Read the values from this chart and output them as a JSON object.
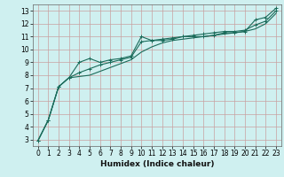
{
  "background_color": "#cff0f0",
  "grid_color_major": "#c8a0a0",
  "grid_color_minor": "#ddd8d8",
  "line_color": "#1a6b5a",
  "xlabel": "Humidex (Indice chaleur)",
  "xlim": [
    -0.5,
    23.5
  ],
  "ylim": [
    2.5,
    13.5
  ],
  "xticks": [
    0,
    1,
    2,
    3,
    4,
    5,
    6,
    7,
    8,
    9,
    10,
    11,
    12,
    13,
    14,
    15,
    16,
    17,
    18,
    19,
    20,
    21,
    22,
    23
  ],
  "yticks": [
    3,
    4,
    5,
    6,
    7,
    8,
    9,
    10,
    11,
    12,
    13
  ],
  "series1_x": [
    0,
    1,
    2,
    3,
    4,
    5,
    6,
    7,
    8,
    9,
    10,
    11,
    12,
    13,
    14,
    15,
    16,
    17,
    18,
    19,
    20,
    21,
    22,
    23
  ],
  "series1_y": [
    2.9,
    4.5,
    7.1,
    7.8,
    9.0,
    9.3,
    9.0,
    9.2,
    9.3,
    9.5,
    11.0,
    10.7,
    10.7,
    10.8,
    11.0,
    11.0,
    11.0,
    11.1,
    11.3,
    11.3,
    11.4,
    12.3,
    12.5,
    13.2
  ],
  "series2_x": [
    0,
    1,
    2,
    3,
    4,
    5,
    6,
    7,
    8,
    9,
    10,
    11,
    12,
    13,
    14,
    15,
    16,
    17,
    18,
    19,
    20,
    21,
    22,
    23
  ],
  "series2_y": [
    2.9,
    4.5,
    7.1,
    7.8,
    8.2,
    8.5,
    8.8,
    9.0,
    9.2,
    9.4,
    10.6,
    10.7,
    10.8,
    10.9,
    11.0,
    11.1,
    11.2,
    11.3,
    11.4,
    11.4,
    11.5,
    11.9,
    12.2,
    13.0
  ],
  "series3_x": [
    0,
    1,
    2,
    3,
    4,
    5,
    6,
    7,
    8,
    9,
    10,
    11,
    12,
    13,
    14,
    15,
    16,
    17,
    18,
    19,
    20,
    21,
    22,
    23
  ],
  "series3_y": [
    2.9,
    4.5,
    7.1,
    7.8,
    7.9,
    8.0,
    8.3,
    8.6,
    8.9,
    9.2,
    9.8,
    10.2,
    10.5,
    10.7,
    10.8,
    10.9,
    11.0,
    11.1,
    11.2,
    11.3,
    11.4,
    11.6,
    12.0,
    12.8
  ],
  "tick_fontsize": 5.5,
  "label_fontsize": 6.5,
  "linewidth": 0.8,
  "markersize": 2.5
}
